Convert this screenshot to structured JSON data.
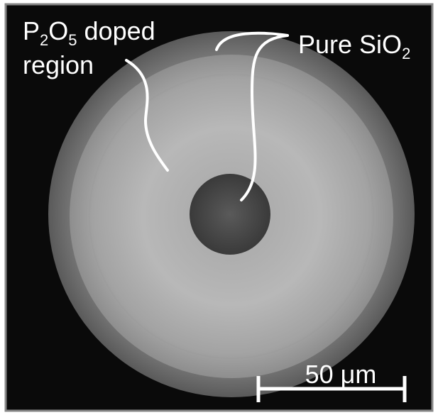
{
  "labels": {
    "doped_region": {
      "line1": [
        {
          "text": "P"
        },
        {
          "sub": "2"
        },
        {
          "text": "O"
        },
        {
          "sub": "5"
        },
        {
          "text": " doped"
        }
      ],
      "line2": "region"
    },
    "pure_silica": [
      {
        "text": "Pure SiO"
      },
      {
        "sub": "2"
      }
    ],
    "scale_bar": "50 μm"
  }
}
